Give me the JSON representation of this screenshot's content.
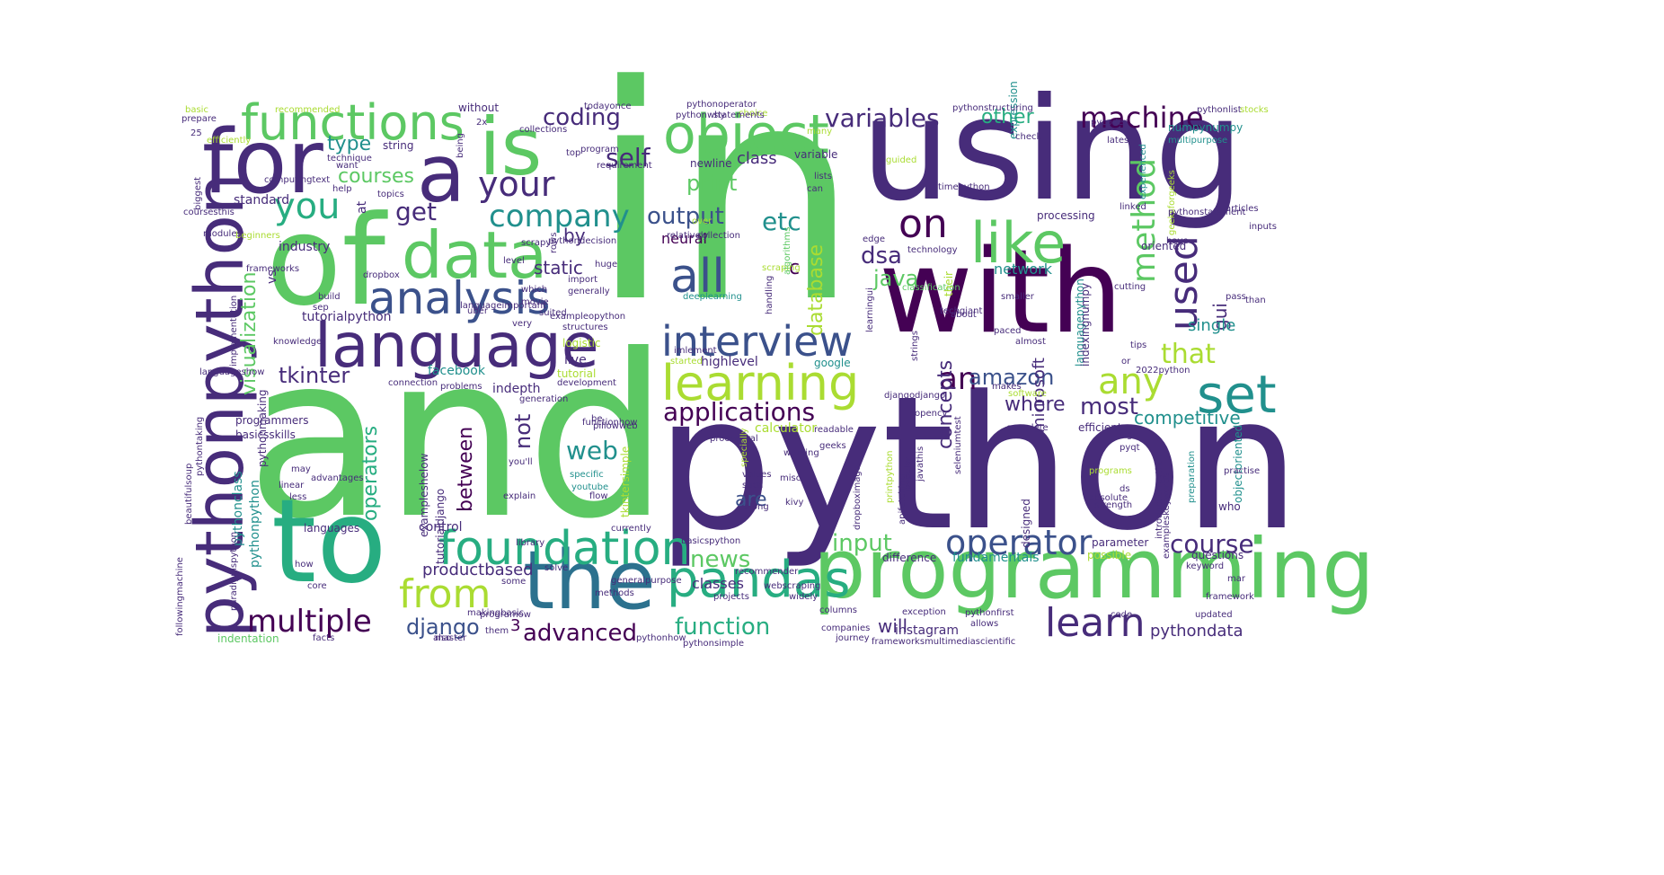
{
  "palette": [
    "#440154",
    "#472c7a",
    "#3b518b",
    "#2c718e",
    "#21908d",
    "#27ad81",
    "#5cc863",
    "#aadc32",
    "#fde725"
  ],
  "words": [
    {
      "text": "in",
      "color": "#5cc863"
    },
    {
      "text": "and",
      "color": "#5cc863"
    },
    {
      "text": "python",
      "color": "#472c7a"
    },
    {
      "text": "using",
      "color": "#472c7a"
    },
    {
      "text": "with",
      "color": "#440154"
    },
    {
      "text": "of",
      "color": "#5cc863"
    },
    {
      "text": "to",
      "color": "#27ad81"
    },
    {
      "text": "programming",
      "color": "#5cc863"
    },
    {
      "text": "the",
      "color": "#2c718e"
    },
    {
      "text": "for",
      "color": "#472c7a"
    },
    {
      "text": "pythonpython",
      "color": "#472c7a"
    },
    {
      "text": "a",
      "color": "#472c7a"
    },
    {
      "text": "is",
      "color": "#5cc863"
    },
    {
      "text": "data",
      "color": "#5cc863"
    },
    {
      "text": "language",
      "color": "#472c7a"
    },
    {
      "text": "foundation",
      "color": "#27ad81"
    },
    {
      "text": "pandas",
      "color": "#27ad81"
    },
    {
      "text": "functions",
      "color": "#5cc863"
    },
    {
      "text": "analysis",
      "color": "#3b518b"
    },
    {
      "text": "object",
      "color": "#5cc863"
    },
    {
      "text": "like",
      "color": "#5cc863"
    },
    {
      "text": "learning",
      "color": "#aadc32"
    },
    {
      "text": "interview",
      "color": "#3b518b"
    },
    {
      "text": "all",
      "color": "#3b518b"
    },
    {
      "text": "set",
      "color": "#21908d"
    },
    {
      "text": "from",
      "color": "#aadc32"
    },
    {
      "text": "learn",
      "color": "#472c7a"
    },
    {
      "text": "operator",
      "color": "#3b518b"
    },
    {
      "text": "on",
      "color": "#440154"
    },
    {
      "text": "your",
      "color": "#472c7a"
    },
    {
      "text": "company",
      "color": "#21908d"
    },
    {
      "text": "you",
      "color": "#27ad81"
    },
    {
      "text": "multiple",
      "color": "#440154"
    },
    {
      "text": "applications",
      "color": "#440154"
    },
    {
      "text": "an",
      "color": "#440154"
    },
    {
      "text": "any",
      "color": "#aadc32"
    },
    {
      "text": "used",
      "color": "#472c7a"
    },
    {
      "text": "method",
      "color": "#5cc863"
    },
    {
      "text": "machine",
      "color": "#440154"
    },
    {
      "text": "variables",
      "color": "#472c7a"
    },
    {
      "text": "coding",
      "color": "#472c7a"
    },
    {
      "text": "web",
      "color": "#21908d"
    },
    {
      "text": "course",
      "color": "#472c7a"
    },
    {
      "text": "advanced",
      "color": "#440154"
    },
    {
      "text": "function",
      "color": "#27ad81"
    },
    {
      "text": "get",
      "color": "#472c7a"
    },
    {
      "text": "output",
      "color": "#3b518b"
    },
    {
      "text": "etc",
      "color": "#21908d"
    },
    {
      "text": "dsa",
      "color": "#472c7a"
    },
    {
      "text": "java",
      "color": "#5cc863"
    },
    {
      "text": "amazon",
      "color": "#3b518b"
    },
    {
      "text": "self",
      "color": "#472c7a"
    },
    {
      "text": "django",
      "color": "#3b518b"
    },
    {
      "text": "news",
      "color": "#5cc863"
    },
    {
      "text": "input",
      "color": "#5cc863"
    },
    {
      "text": "that",
      "color": "#aadc32"
    },
    {
      "text": "competitive",
      "color": "#21908d"
    },
    {
      "text": "most",
      "color": "#472c7a"
    },
    {
      "text": "where",
      "color": "#472c7a"
    },
    {
      "text": "are",
      "color": "#3b518b"
    },
    {
      "text": "courses",
      "color": "#5cc863"
    },
    {
      "text": "type",
      "color": "#21908d"
    },
    {
      "text": "print",
      "color": "#5cc863"
    },
    {
      "text": "tkinter",
      "color": "#472c7a"
    },
    {
      "text": "operators",
      "color": "#27ad81"
    },
    {
      "text": "visualization",
      "color": "#5cc863"
    },
    {
      "text": "database",
      "color": "#aadc32"
    },
    {
      "text": "concepts",
      "color": "#472c7a"
    },
    {
      "text": "between",
      "color": "#440154"
    },
    {
      "text": "not",
      "color": "#472c7a"
    },
    {
      "text": "static",
      "color": "#472c7a"
    },
    {
      "text": "other",
      "color": "#27ad81"
    },
    {
      "text": "pythondata",
      "color": "#472c7a"
    },
    {
      "text": "will",
      "color": "#472c7a"
    },
    {
      "text": "gui",
      "color": "#472c7a"
    },
    {
      "text": "c",
      "color": "#440154"
    },
    {
      "text": "by",
      "color": "#472c7a"
    },
    {
      "text": "class",
      "color": "#472c7a"
    },
    {
      "text": "neural",
      "color": "#440154"
    },
    {
      "text": "network",
      "color": "#21908d"
    },
    {
      "text": "microsoft",
      "color": "#472c7a"
    },
    {
      "text": "single",
      "color": "#21908d"
    },
    {
      "text": "productbased",
      "color": "#472c7a"
    },
    {
      "text": "classes",
      "color": "#472c7a"
    },
    {
      "text": "highlevel",
      "color": "#472c7a"
    },
    {
      "text": "tutorialpython",
      "color": "#472c7a"
    },
    {
      "text": "facebook",
      "color": "#21908d"
    },
    {
      "text": "indepth",
      "color": "#472c7a"
    },
    {
      "text": "fundamentals",
      "color": "#21908d"
    },
    {
      "text": "instagram",
      "color": "#472c7a"
    },
    {
      "text": "pythonclass",
      "color": "#21908d"
    },
    {
      "text": "pythonpython",
      "color": "#21908d"
    },
    {
      "text": "3",
      "color": "#440154"
    },
    {
      "text": "control",
      "color": "#472c7a"
    },
    {
      "text": "string",
      "color": "#472c7a"
    },
    {
      "text": "newline",
      "color": "#472c7a"
    },
    {
      "text": "variable",
      "color": "#472c7a"
    },
    {
      "text": "industry",
      "color": "#472c7a"
    },
    {
      "text": "standard",
      "color": "#472c7a"
    },
    {
      "text": "programmers",
      "color": "#472c7a"
    },
    {
      "text": "basicsskills",
      "color": "#472c7a"
    },
    {
      "text": "connection",
      "color": "#472c7a"
    },
    {
      "text": "live",
      "color": "#472c7a"
    },
    {
      "text": "logistic",
      "color": "#aadc32"
    },
    {
      "text": "tutorial",
      "color": "#aadc32"
    },
    {
      "text": "calculator",
      "color": "#aadc32"
    },
    {
      "text": "google",
      "color": "#21908d"
    },
    {
      "text": "started",
      "color": "#aadc32"
    },
    {
      "text": "djangodjango",
      "color": "#472c7a"
    },
    {
      "text": "recommender",
      "color": "#472c7a"
    },
    {
      "text": "basicspython",
      "color": "#472c7a"
    },
    {
      "text": "methods",
      "color": "#472c7a"
    },
    {
      "text": "languages",
      "color": "#472c7a"
    },
    {
      "text": "indentation",
      "color": "#5cc863"
    },
    {
      "text": "difference",
      "color": "#472c7a"
    },
    {
      "text": "parameter",
      "color": "#472c7a"
    },
    {
      "text": "questions",
      "color": "#472c7a"
    },
    {
      "text": "possible",
      "color": "#aadc32"
    },
    {
      "text": "processing",
      "color": "#472c7a"
    },
    {
      "text": "efficient",
      "color": "#472c7a"
    },
    {
      "text": "expression",
      "color": "#21908d"
    },
    {
      "text": "languagepython",
      "color": "#21908d"
    },
    {
      "text": "classification",
      "color": "#5cc863"
    },
    {
      "text": "oriented",
      "color": "#472c7a"
    },
    {
      "text": "numpynumpy",
      "color": "#21908d"
    },
    {
      "text": "multipurpose",
      "color": "#21908d"
    },
    {
      "text": "geeksforgeeks",
      "color": "#aadc32"
    },
    {
      "text": "preparation",
      "color": "#21908d"
    },
    {
      "text": "objectoriented",
      "color": "#21908d"
    },
    {
      "text": "who",
      "color": "#472c7a"
    },
    {
      "text": "tips",
      "color": "#472c7a"
    },
    {
      "text": "pass",
      "color": "#472c7a"
    },
    {
      "text": "choice",
      "color": "#aadc32"
    },
    {
      "text": "without",
      "color": "#472c7a"
    },
    {
      "text": "pythonoperator",
      "color": "#472c7a"
    },
    {
      "text": "prepare",
      "color": "#472c7a"
    },
    {
      "text": "basic",
      "color": "#aadc32"
    },
    {
      "text": "technique",
      "color": "#472c7a"
    },
    {
      "text": "help",
      "color": "#472c7a"
    },
    {
      "text": "topics",
      "color": "#472c7a"
    },
    {
      "text": "beginners",
      "color": "#aadc32"
    },
    {
      "text": "frameworks",
      "color": "#472c7a"
    },
    {
      "text": "dropbox",
      "color": "#472c7a"
    },
    {
      "text": "scrapy",
      "color": "#472c7a"
    },
    {
      "text": "huge",
      "color": "#472c7a"
    },
    {
      "text": "import",
      "color": "#472c7a"
    },
    {
      "text": "generally",
      "color": "#472c7a"
    },
    {
      "text": "structures",
      "color": "#472c7a"
    },
    {
      "text": "suited",
      "color": "#472c7a"
    },
    {
      "text": "very",
      "color": "#472c7a"
    },
    {
      "text": "deeplearning",
      "color": "#21908d"
    },
    {
      "text": "scraping",
      "color": "#aadc32"
    },
    {
      "text": "algorithms",
      "color": "#5cc863"
    },
    {
      "text": "handling",
      "color": "#472c7a"
    },
    {
      "text": "techgiant",
      "color": "#472c7a"
    },
    {
      "text": "paced",
      "color": "#472c7a"
    },
    {
      "text": "almost",
      "color": "#472c7a"
    },
    {
      "text": "about",
      "color": "#472c7a"
    },
    {
      "text": "technology",
      "color": "#472c7a"
    },
    {
      "text": "edge",
      "color": "#472c7a"
    },
    {
      "text": "timepython",
      "color": "#472c7a"
    },
    {
      "text": "lists",
      "color": "#472c7a"
    },
    {
      "text": "many",
      "color": "#aadc32"
    },
    {
      "text": "requirement",
      "color": "#472c7a"
    },
    {
      "text": "program",
      "color": "#472c7a"
    },
    {
      "text": "top",
      "color": "#472c7a"
    },
    {
      "text": "over",
      "color": "#aadc32"
    },
    {
      "text": "collection",
      "color": "#472c7a"
    },
    {
      "text": "relatively",
      "color": "#472c7a"
    },
    {
      "text": "level",
      "color": "#472c7a"
    },
    {
      "text": "rows",
      "color": "#472c7a"
    },
    {
      "text": "which",
      "color": "#472c7a"
    },
    {
      "text": "movie",
      "color": "#472c7a"
    },
    {
      "text": "inputs",
      "color": "#472c7a"
    },
    {
      "text": "articles",
      "color": "#472c7a"
    },
    {
      "text": "experienced",
      "color": "#21908d"
    },
    {
      "text": "latest",
      "color": "#472c7a"
    },
    {
      "text": "linked",
      "color": "#472c7a"
    },
    {
      "text": "have",
      "color": "#472c7a"
    },
    {
      "text": "cutting",
      "color": "#472c7a"
    },
    {
      "text": "than",
      "color": "#472c7a"
    },
    {
      "text": "smaller",
      "color": "#472c7a"
    },
    {
      "text": "makes",
      "color": "#472c7a"
    },
    {
      "text": "software",
      "color": "#aadc32"
    },
    {
      "text": "or",
      "color": "#472c7a"
    },
    {
      "text": "2022python",
      "color": "#472c7a"
    },
    {
      "text": "opencv",
      "color": "#472c7a"
    },
    {
      "text": "sign",
      "color": "#472c7a"
    },
    {
      "text": "pyqt",
      "color": "#472c7a"
    },
    {
      "text": "geeks",
      "color": "#472c7a"
    },
    {
      "text": "readable",
      "color": "#472c7a"
    },
    {
      "text": "complete",
      "color": "#472c7a"
    },
    {
      "text": "seleniumtest",
      "color": "#472c7a"
    },
    {
      "text": "popular",
      "color": "#472c7a"
    },
    {
      "text": "javathis",
      "color": "#472c7a"
    },
    {
      "text": "apifetching",
      "color": "#472c7a"
    },
    {
      "text": "printpython",
      "color": "#aadc32"
    },
    {
      "text": "dropboximage",
      "color": "#472c7a"
    },
    {
      "text": "columns",
      "color": "#472c7a"
    },
    {
      "text": "companies",
      "color": "#472c7a"
    },
    {
      "text": "exception",
      "color": "#472c7a"
    },
    {
      "text": "pythonfirst",
      "color": "#472c7a"
    },
    {
      "text": "allows",
      "color": "#472c7a"
    },
    {
      "text": "code",
      "color": "#472c7a"
    },
    {
      "text": "updated",
      "color": "#472c7a"
    },
    {
      "text": "framework",
      "color": "#472c7a"
    },
    {
      "text": "mar",
      "color": "#472c7a"
    },
    {
      "text": "strength",
      "color": "#472c7a"
    },
    {
      "text": "programs",
      "color": "#aadc32"
    },
    {
      "text": "absolute",
      "color": "#472c7a"
    },
    {
      "text": "flow",
      "color": "#472c7a"
    },
    {
      "text": "specific",
      "color": "#21908d"
    },
    {
      "text": "youtube",
      "color": "#21908d"
    },
    {
      "text": "pillowweb",
      "color": "#472c7a"
    },
    {
      "text": "be",
      "color": "#472c7a"
    },
    {
      "text": "development",
      "color": "#472c7a"
    },
    {
      "text": "generation",
      "color": "#472c7a"
    },
    {
      "text": "library",
      "color": "#472c7a"
    },
    {
      "text": "explain",
      "color": "#472c7a"
    },
    {
      "text": "some",
      "color": "#472c7a"
    },
    {
      "text": "currently",
      "color": "#472c7a"
    },
    {
      "text": "generalpurpose",
      "color": "#472c7a"
    },
    {
      "text": "solve",
      "color": "#472c7a"
    },
    {
      "text": "master",
      "color": "#472c7a"
    },
    {
      "text": "facts",
      "color": "#472c7a"
    },
    {
      "text": "how",
      "color": "#472c7a"
    },
    {
      "text": "core",
      "color": "#472c7a"
    },
    {
      "text": "linear",
      "color": "#472c7a"
    },
    {
      "text": "less",
      "color": "#472c7a"
    },
    {
      "text": "may",
      "color": "#472c7a"
    },
    {
      "text": "advantages",
      "color": "#472c7a"
    },
    {
      "text": "knowledge",
      "color": "#472c7a"
    },
    {
      "text": "sep",
      "color": "#472c7a"
    },
    {
      "text": "build",
      "color": "#472c7a"
    },
    {
      "text": "modules",
      "color": "#472c7a"
    },
    {
      "text": "coursesthis",
      "color": "#472c7a"
    },
    {
      "text": "computingtext",
      "color": "#472c7a"
    },
    {
      "text": "efficiently",
      "color": "#aadc32"
    },
    {
      "text": "25",
      "color": "#472c7a"
    },
    {
      "text": "biggest",
      "color": "#472c7a"
    },
    {
      "text": "want",
      "color": "#472c7a"
    },
    {
      "text": "todayonce",
      "color": "#472c7a"
    },
    {
      "text": "2x",
      "color": "#472c7a"
    },
    {
      "text": "collections",
      "color": "#472c7a"
    },
    {
      "text": "recommended",
      "color": "#aadc32"
    },
    {
      "text": "being",
      "color": "#472c7a"
    },
    {
      "text": "pythonstructuring",
      "color": "#472c7a"
    },
    {
      "text": "check",
      "color": "#472c7a"
    },
    {
      "text": "guided",
      "color": "#aadc32"
    },
    {
      "text": "can",
      "color": "#472c7a"
    },
    {
      "text": "implementation",
      "color": "#472c7a"
    },
    {
      "text": "beautifulsoup",
      "color": "#472c7a"
    },
    {
      "text": "tutorialdjango",
      "color": "#472c7a"
    },
    {
      "text": "exampleshelow",
      "color": "#472c7a"
    },
    {
      "text": "pythonmaking",
      "color": "#472c7a"
    },
    {
      "text": "paradigmspython",
      "color": "#472c7a"
    },
    {
      "text": "followingmachine",
      "color": "#472c7a"
    },
    {
      "text": "pythondecision",
      "color": "#472c7a"
    },
    {
      "text": "tkintersimple",
      "color": "#aadc32"
    },
    {
      "text": "at",
      "color": "#472c7a"
    },
    {
      "text": "vs",
      "color": "#472c7a"
    },
    {
      "text": "indexingnumpy",
      "color": "#472c7a"
    },
    {
      "text": "learningui",
      "color": "#472c7a"
    },
    {
      "text": "designed",
      "color": "#472c7a"
    },
    {
      "text": "their",
      "color": "#aadc32"
    },
    {
      "text": "strings",
      "color": "#472c7a"
    },
    {
      "text": "practise",
      "color": "#472c7a"
    },
    {
      "text": "introductionpython",
      "color": "#472c7a"
    },
    {
      "text": "exampleskeywords",
      "color": "#472c7a"
    },
    {
      "text": "kivy",
      "color": "#472c7a"
    },
    {
      "text": "along",
      "color": "#472c7a"
    },
    {
      "text": "such",
      "color": "#472c7a"
    },
    {
      "text": "values",
      "color": "#472c7a"
    },
    {
      "text": "misc",
      "color": "#472c7a"
    },
    {
      "text": "working",
      "color": "#472c7a"
    },
    {
      "text": "procedural",
      "color": "#472c7a"
    },
    {
      "text": "you'll",
      "color": "#472c7a"
    },
    {
      "text": "pythonhow",
      "color": "#472c7a"
    },
    {
      "text": "projects",
      "color": "#472c7a"
    },
    {
      "text": "widely",
      "color": "#472c7a"
    },
    {
      "text": "journey",
      "color": "#472c7a"
    },
    {
      "text": "pythonsimple",
      "color": "#472c7a"
    },
    {
      "text": "frameworksmultimediascientific",
      "color": "#472c7a"
    },
    {
      "text": "problems",
      "color": "#472c7a"
    },
    {
      "text": "also",
      "color": "#472c7a"
    },
    {
      "text": "them",
      "color": "#472c7a"
    },
    {
      "text": "webscraping",
      "color": "#472c7a"
    },
    {
      "text": "specially",
      "color": "#aadc32"
    },
    {
      "text": "pythontaking",
      "color": "#472c7a"
    },
    {
      "text": "languageshow",
      "color": "#472c7a"
    },
    {
      "text": "imlement",
      "color": "#472c7a"
    },
    {
      "text": "uber",
      "color": "#472c7a"
    },
    {
      "text": "keyword",
      "color": "#472c7a"
    },
    {
      "text": "languageimportant",
      "color": "#472c7a"
    },
    {
      "text": "functionhow",
      "color": "#472c7a"
    },
    {
      "text": "makingbasic",
      "color": "#472c7a"
    },
    {
      "text": "exampleopython",
      "color": "#472c7a"
    },
    {
      "text": "pythonstatement",
      "color": "#472c7a"
    },
    {
      "text": "programow",
      "color": "#472c7a"
    },
    {
      "text": "ds",
      "color": "#472c7a"
    },
    {
      "text": "pythonlist",
      "color": "#472c7a"
    },
    {
      "text": "pythonwhy",
      "color": "#472c7a"
    },
    {
      "text": "statements",
      "color": "#472c7a"
    },
    {
      "text": "pycoder",
      "color": "#472c7a"
    },
    {
      "text": "stocks",
      "color": "#aadc32"
    }
  ]
}
